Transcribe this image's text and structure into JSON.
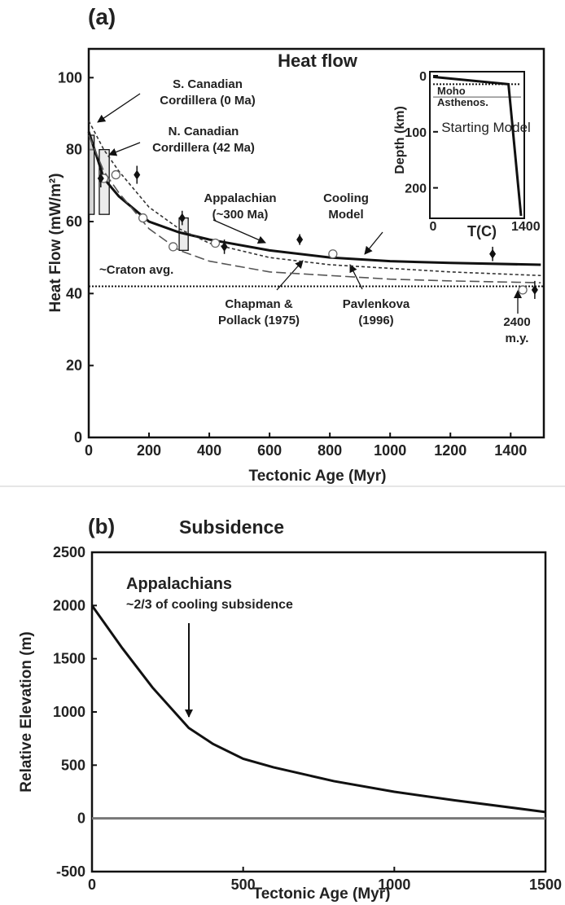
{
  "chart_data": [
    {
      "type": "line",
      "panel_label": "(a)",
      "title": "Heat flow",
      "xlabel": "Tectonic Age (Myr)",
      "ylabel": "Heat Flow (mW/m²)",
      "xlim": [
        0,
        1510
      ],
      "ylim": [
        0,
        108
      ],
      "xticks": [
        0,
        200,
        400,
        600,
        800,
        1000,
        1200,
        1400
      ],
      "yticks": [
        0,
        20,
        40,
        60,
        80,
        100
      ],
      "x": [
        0,
        50,
        100,
        200,
        300,
        400,
        600,
        800,
        1000,
        1200,
        1500
      ],
      "series": [
        {
          "name": "Cooling Model",
          "color": "#111111",
          "style": "solid",
          "values": [
            85,
            72,
            67,
            60,
            57,
            55,
            52,
            50,
            49,
            48.5,
            48
          ]
        },
        {
          "name": "Chapman & Pollack (1975)",
          "color": "#333333",
          "style": "dashed",
          "values": [
            88,
            80,
            74,
            64,
            58,
            54,
            50,
            48,
            47,
            46,
            45
          ]
        },
        {
          "name": "Pavlenkova (1996)",
          "color": "#555555",
          "style": "longdash",
          "values": [
            84,
            74,
            68,
            58,
            52,
            49,
            46,
            45,
            44,
            43.5,
            43
          ]
        }
      ],
      "reference_lines": [
        {
          "name": "~Craton avg.",
          "value": 42
        }
      ],
      "open_points": {
        "x": [
          50,
          90,
          180,
          280,
          420,
          810,
          1440
        ],
        "y": [
          72,
          73,
          61,
          53,
          54,
          51,
          41
        ]
      },
      "filled_points": {
        "x": [
          40,
          160,
          310,
          450,
          700,
          1340,
          1480
        ],
        "y": [
          72,
          73,
          61,
          53,
          55,
          51,
          41
        ],
        "err": [
          2.5,
          2.5,
          2,
          2,
          1.5,
          2,
          2.5
        ]
      },
      "boxes": [
        {
          "x": [
            0,
            18
          ],
          "y": [
            62,
            84
          ]
        },
        {
          "x": [
            35,
            68
          ],
          "y": [
            62,
            80
          ]
        },
        {
          "x": [
            300,
            330
          ],
          "y": [
            52,
            61
          ]
        }
      ],
      "annotations": [
        {
          "lines": [
            "S. Canadian",
            "Cordillera (0 Ma)"
          ]
        },
        {
          "lines": [
            "N. Canadian",
            "Cordillera (42 Ma)"
          ]
        },
        {
          "lines": [
            "Appalachian",
            "(~300 Ma)"
          ]
        },
        {
          "lines": [
            "Cooling",
            "Model"
          ]
        },
        {
          "lines": [
            "Chapman &",
            "Pollack (1975)"
          ]
        },
        {
          "lines": [
            "Pavlenkova",
            "(1996)"
          ]
        },
        {
          "lines": [
            "2400",
            "m.y."
          ]
        }
      ]
    },
    {
      "type": "line",
      "title": "Starting Model",
      "xlabel": "T(C)",
      "ylabel": "Depth (km)",
      "xlim": [
        0,
        1400
      ],
      "ylim": [
        0,
        250
      ],
      "xticks": [
        0,
        1400
      ],
      "yticks": [
        0,
        100,
        200
      ],
      "y_inverted": true,
      "x": [
        0,
        1200,
        1400
      ],
      "series": [
        {
          "name": "geotherm",
          "color": "#111111",
          "style": "solid",
          "values": [
            2,
            15,
            250
          ]
        }
      ],
      "reference_lines": [
        {
          "name": "Moho",
          "value": 38
        },
        {
          "name": "Asthenos.",
          "value": 15
        }
      ]
    },
    {
      "type": "line",
      "panel_label": "(b)",
      "title": "Subsidence",
      "xlabel": "Tectonic  Age (Myr)",
      "ylabel": "Relative Elevation (m)",
      "xlim": [
        0,
        1500
      ],
      "ylim": [
        -500,
        2500
      ],
      "xticks": [
        0,
        500,
        1000,
        1500
      ],
      "yticks": [
        -500,
        0,
        500,
        1000,
        1500,
        2000,
        2500
      ],
      "x": [
        0,
        100,
        200,
        320,
        400,
        500,
        600,
        800,
        1000,
        1200,
        1500
      ],
      "series": [
        {
          "name": "subsidence",
          "color": "#111111",
          "style": "solid",
          "values": [
            2000,
            1600,
            1230,
            850,
            700,
            560,
            480,
            350,
            250,
            170,
            60
          ]
        }
      ],
      "reference_lines": [
        {
          "name": "zero",
          "value": 0
        }
      ],
      "annotations": [
        {
          "lines": [
            "Appalachians",
            "~2/3 of cooling subsidence"
          ]
        }
      ]
    }
  ]
}
